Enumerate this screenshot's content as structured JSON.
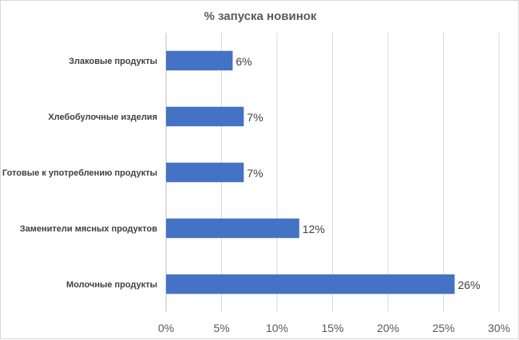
{
  "chart_data": {
    "type": "bar",
    "orientation": "horizontal",
    "title": "% запуска новинок",
    "categories": [
      "Злаковые продукты",
      "Хлебобулочные изделия",
      "Готовые к употреблению продукты",
      "Заменители мясных продуктов",
      "Молочные продукты"
    ],
    "values": [
      6,
      7,
      7,
      12,
      26
    ],
    "value_labels": [
      "6%",
      "7%",
      "7%",
      "12%",
      "26%"
    ],
    "xlim": [
      0,
      30
    ],
    "xticks": [
      0,
      5,
      10,
      15,
      20,
      25,
      30
    ],
    "xtick_labels": [
      "0%",
      "5%",
      "10%",
      "15%",
      "20%",
      "25%",
      "30%"
    ],
    "grid": "vertical",
    "legend": "none",
    "bar_color": "#4472c4"
  }
}
